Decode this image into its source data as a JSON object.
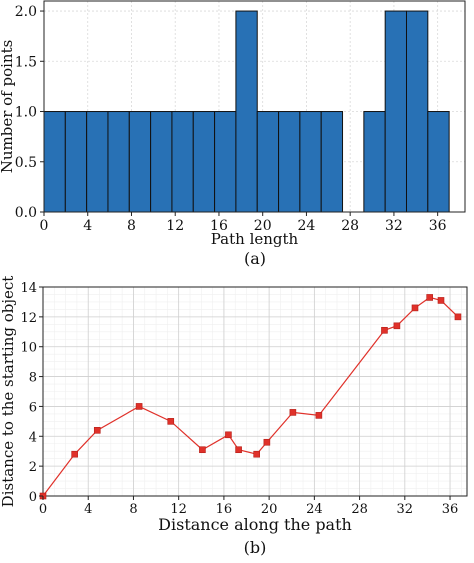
{
  "chart_data": [
    {
      "type": "bar",
      "caption": "(a)",
      "xlabel": "Path length",
      "ylabel": "Number of points",
      "xlim": [
        0,
        38.5
      ],
      "ylim": [
        0,
        2.1
      ],
      "xticks": [
        0,
        4,
        8,
        12,
        16,
        20,
        24,
        28,
        32,
        36
      ],
      "yticks": [
        0.0,
        0.5,
        1.0,
        1.5,
        2.0
      ],
      "ytick_labels": [
        "0.0",
        "0.5",
        "1.0",
        "1.5",
        "2.0"
      ],
      "bin_width": 1.95,
      "bins": [
        {
          "start": 0.0,
          "count": 1
        },
        {
          "start": 1.95,
          "count": 1
        },
        {
          "start": 3.9,
          "count": 1
        },
        {
          "start": 5.85,
          "count": 1
        },
        {
          "start": 7.8,
          "count": 1
        },
        {
          "start": 9.75,
          "count": 1
        },
        {
          "start": 11.7,
          "count": 1
        },
        {
          "start": 13.65,
          "count": 1
        },
        {
          "start": 15.6,
          "count": 1
        },
        {
          "start": 17.55,
          "count": 2
        },
        {
          "start": 19.5,
          "count": 1
        },
        {
          "start": 21.45,
          "count": 1
        },
        {
          "start": 23.4,
          "count": 1
        },
        {
          "start": 25.35,
          "count": 1
        },
        {
          "start": 27.3,
          "count": 0
        },
        {
          "start": 29.25,
          "count": 1
        },
        {
          "start": 31.2,
          "count": 2
        },
        {
          "start": 33.15,
          "count": 2
        },
        {
          "start": 35.1,
          "count": 1
        }
      ],
      "bar_color": "#2871b5",
      "grid": true
    },
    {
      "type": "line",
      "caption": "(b)",
      "xlabel": "Distance along the path",
      "ylabel": "Distance to the starting object",
      "xlim": [
        0,
        37.5
      ],
      "ylim": [
        0,
        14
      ],
      "xticks": [
        0,
        4,
        8,
        12,
        16,
        20,
        24,
        28,
        32,
        36
      ],
      "yticks": [
        0,
        2,
        4,
        6,
        8,
        10,
        12,
        14
      ],
      "x": [
        0,
        2.8,
        4.8,
        8.5,
        11.3,
        14.1,
        16.4,
        17.3,
        18.9,
        19.8,
        22.1,
        24.4,
        30.2,
        31.3,
        32.9,
        34.2,
        35.2,
        36.7
      ],
      "y": [
        0,
        2.8,
        4.4,
        6.0,
        5.0,
        3.1,
        4.1,
        3.1,
        2.8,
        3.6,
        5.6,
        5.4,
        11.1,
        11.4,
        12.6,
        13.3,
        13.1,
        12.0
      ],
      "line_color": "#e0312a",
      "marker": "square",
      "grid": true
    }
  ]
}
